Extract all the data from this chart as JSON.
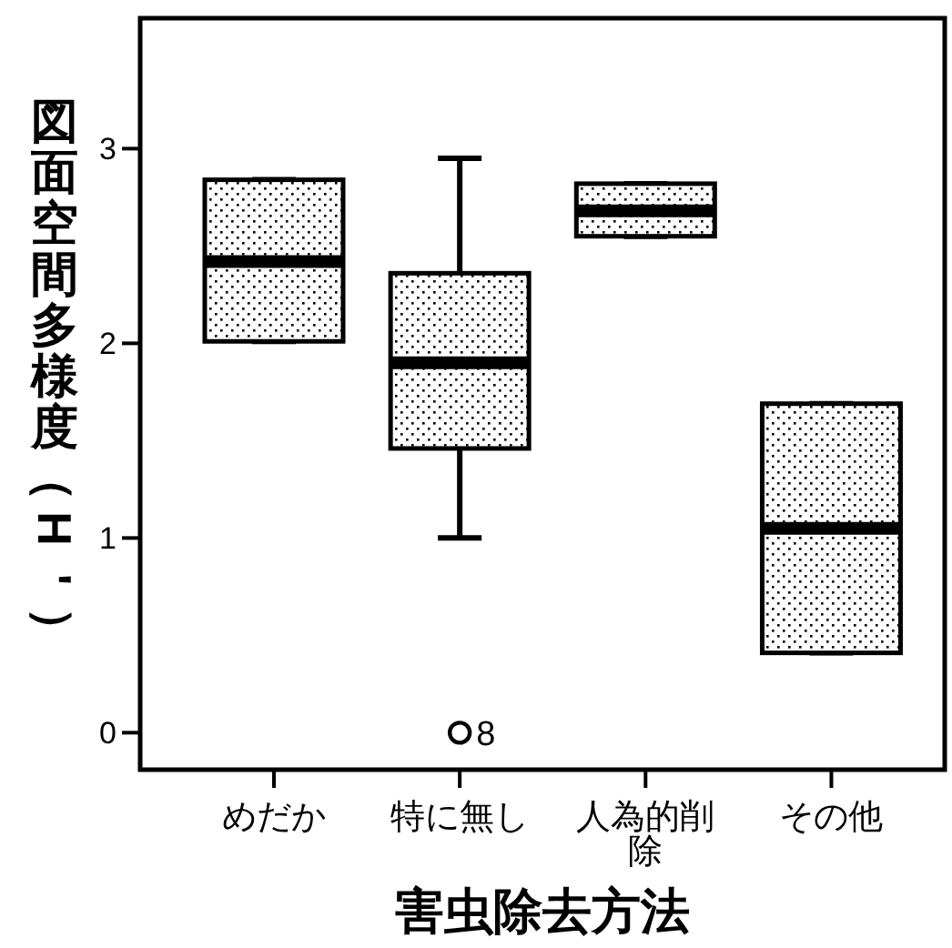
{
  "chart_data": {
    "type": "box",
    "xlabel": "害虫除去方法",
    "ylabel": "図面空間多様度（H'）",
    "categories": [
      "めだか",
      "特に無し",
      "人為的削除",
      "その他"
    ],
    "boxes": [
      {
        "low": 2.01,
        "q1": 2.01,
        "median": 2.42,
        "q3": 2.84,
        "high": 2.84
      },
      {
        "low": 1.0,
        "q1": 1.46,
        "median": 1.9,
        "q3": 2.36,
        "high": 2.95,
        "outliers": [
          0
        ]
      },
      {
        "low": 2.55,
        "q1": 2.55,
        "median": 2.68,
        "q3": 2.82,
        "high": 2.82
      },
      {
        "low": 0.41,
        "q1": 0.41,
        "median": 1.05,
        "q3": 1.69,
        "high": 1.69
      }
    ],
    "ylim": [
      -0.19,
      3.67
    ],
    "yticks": [
      0,
      1,
      2,
      3
    ],
    "grid": false,
    "annotations": [
      "8"
    ]
  }
}
